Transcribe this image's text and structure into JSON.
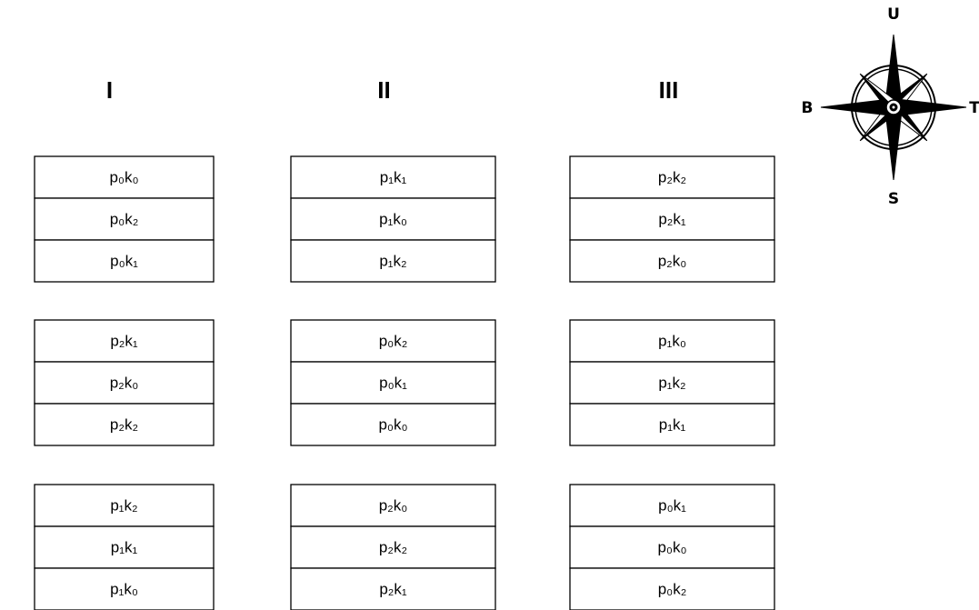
{
  "headers": [
    "I",
    "II",
    "III"
  ],
  "compass": {
    "north": "U",
    "south": "S",
    "west": "B",
    "east": "T"
  },
  "columns": [
    [
      [
        "p₀k₀",
        "p₀k₂",
        "p₀k₁"
      ],
      [
        "p₂k₁",
        "p₂k₀",
        "p₂k₂"
      ],
      [
        "p₁k₂",
        "p₁k₁",
        "p₁k₀"
      ]
    ],
    [
      [
        "p₁k₁",
        "p₁k₀",
        "p₁k₂"
      ],
      [
        "p₀k₂",
        "p₀k₁",
        "p₀k₀"
      ],
      [
        "p₂k₀",
        "p₂k₂",
        "p₂k₁"
      ]
    ],
    [
      [
        "p₂k₂",
        "p₂k₁",
        "p₂k₀"
      ],
      [
        "p₁k₀",
        "p₁k₂",
        "p₁k₁"
      ],
      [
        "p₀k₁",
        "p₀k₀",
        "p₀k₂"
      ]
    ]
  ]
}
